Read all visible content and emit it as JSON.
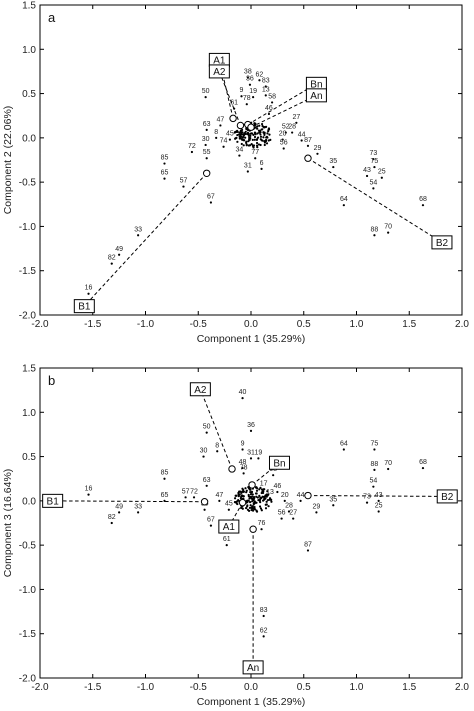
{
  "chart_data": [
    {
      "type": "scatter",
      "panel_label": "a",
      "xlabel": "Component 1 (35.29%)",
      "ylabel": "Component 2 (22.06%)",
      "xlim": [
        -2.0,
        2.0
      ],
      "ylim": [
        -2.0,
        1.5
      ],
      "x_ticks": [
        "-2.0",
        "-1.5",
        "-1.0",
        "-0.5",
        "0.0",
        "0.5",
        "1.0",
        "1.5",
        "2.0"
      ],
      "y_ticks": [
        "-2.0",
        "-1.5",
        "-1.0",
        "-0.5",
        "0.0",
        "0.5",
        "1.0",
        "1.5"
      ],
      "grid": false,
      "points": [
        {
          "label": "38",
          "x": -0.03,
          "y": 0.68
        },
        {
          "label": "62",
          "x": 0.08,
          "y": 0.65
        },
        {
          "label": "36",
          "x": -0.01,
          "y": 0.6
        },
        {
          "label": "83",
          "x": 0.14,
          "y": 0.58
        },
        {
          "label": "50",
          "x": -0.43,
          "y": 0.46
        },
        {
          "label": "13",
          "x": 0.14,
          "y": 0.48
        },
        {
          "label": "9",
          "x": -0.09,
          "y": 0.47
        },
        {
          "label": "19",
          "x": 0.02,
          "y": 0.46
        },
        {
          "label": "58",
          "x": 0.2,
          "y": 0.4
        },
        {
          "label": "78",
          "x": -0.04,
          "y": 0.38
        },
        {
          "label": "46",
          "x": 0.17,
          "y": 0.27
        },
        {
          "label": "61",
          "x": -0.16,
          "y": 0.33
        },
        {
          "label": "27",
          "x": 0.43,
          "y": 0.17
        },
        {
          "label": "47",
          "x": -0.29,
          "y": 0.14
        },
        {
          "label": "63",
          "x": -0.42,
          "y": 0.09
        },
        {
          "label": "52",
          "x": 0.33,
          "y": 0.06
        },
        {
          "label": "28",
          "x": 0.39,
          "y": 0.06
        },
        {
          "label": "8",
          "x": -0.33,
          "y": 0.0
        },
        {
          "label": "45",
          "x": -0.2,
          "y": -0.02
        },
        {
          "label": "20",
          "x": 0.3,
          "y": -0.02
        },
        {
          "label": "44",
          "x": 0.48,
          "y": -0.03
        },
        {
          "label": "30",
          "x": -0.43,
          "y": -0.08
        },
        {
          "label": "74",
          "x": -0.26,
          "y": -0.1
        },
        {
          "label": "56",
          "x": 0.31,
          "y": -0.12
        },
        {
          "label": "87",
          "x": 0.54,
          "y": -0.09
        },
        {
          "label": "72",
          "x": -0.56,
          "y": -0.16
        },
        {
          "label": "55",
          "x": -0.42,
          "y": -0.23
        },
        {
          "label": "34",
          "x": -0.11,
          "y": -0.2
        },
        {
          "label": "77",
          "x": 0.04,
          "y": -0.23
        },
        {
          "label": "29",
          "x": 0.63,
          "y": -0.18
        },
        {
          "label": "85",
          "x": -0.82,
          "y": -0.29
        },
        {
          "label": "6",
          "x": 0.1,
          "y": -0.35
        },
        {
          "label": "31",
          "x": -0.03,
          "y": -0.38
        },
        {
          "label": "35",
          "x": 0.78,
          "y": -0.33
        },
        {
          "label": "73",
          "x": 1.16,
          "y": -0.24
        },
        {
          "label": "75",
          "x": 1.17,
          "y": -0.33
        },
        {
          "label": "65",
          "x": -0.82,
          "y": -0.46
        },
        {
          "label": "43",
          "x": 1.1,
          "y": -0.43
        },
        {
          "label": "25",
          "x": 1.24,
          "y": -0.45
        },
        {
          "label": "57",
          "x": -0.64,
          "y": -0.55
        },
        {
          "label": "54",
          "x": 1.16,
          "y": -0.57
        },
        {
          "label": "67",
          "x": -0.38,
          "y": -0.73
        },
        {
          "label": "64",
          "x": 0.88,
          "y": -0.76
        },
        {
          "label": "68",
          "x": 1.63,
          "y": -0.76
        },
        {
          "label": "88",
          "x": 1.17,
          "y": -1.1
        },
        {
          "label": "70",
          "x": 1.3,
          "y": -1.07
        },
        {
          "label": "33",
          "x": -1.07,
          "y": -1.1
        },
        {
          "label": "49",
          "x": -1.25,
          "y": -1.32
        },
        {
          "label": "82",
          "x": -1.32,
          "y": -1.42
        },
        {
          "label": "16",
          "x": -1.54,
          "y": -1.76
        }
      ],
      "centroids": [
        {
          "name": "A1",
          "x": -0.17,
          "y": 0.22,
          "box": [
            -0.3,
            0.88
          ]
        },
        {
          "name": "A2",
          "x": -0.1,
          "y": 0.14,
          "box": [
            -0.3,
            0.75
          ]
        },
        {
          "name": "Bn",
          "x": -0.03,
          "y": 0.15,
          "box": [
            0.62,
            0.61
          ]
        },
        {
          "name": "An",
          "x": 0.0,
          "y": 0.12,
          "box": [
            0.62,
            0.48
          ]
        },
        {
          "name": "B1",
          "x": -0.42,
          "y": -0.4,
          "box": [
            -1.58,
            -1.9
          ]
        },
        {
          "name": "B2",
          "x": 0.54,
          "y": -0.23,
          "box": [
            1.81,
            -1.18
          ]
        }
      ]
    },
    {
      "type": "scatter",
      "panel_label": "b",
      "xlabel": "Component 1 (35.29%)",
      "ylabel": "Component 3 (16.64%)",
      "xlim": [
        -2.0,
        2.0
      ],
      "ylim": [
        -2.0,
        1.5
      ],
      "x_ticks": [
        "-2.0",
        "-1.5",
        "-1.0",
        "-0.5",
        "0.0",
        "0.5",
        "1.0",
        "1.5",
        "2.0"
      ],
      "y_ticks": [
        "-2.0",
        "-1.5",
        "-1.0",
        "-0.5",
        "0.0",
        "0.5",
        "1.0",
        "1.5"
      ],
      "grid": false,
      "points": [
        {
          "label": "40",
          "x": -0.08,
          "y": 1.16
        },
        {
          "label": "50",
          "x": -0.42,
          "y": 0.77
        },
        {
          "label": "36",
          "x": 0.0,
          "y": 0.79
        },
        {
          "label": "8",
          "x": -0.32,
          "y": 0.56
        },
        {
          "label": "9",
          "x": -0.08,
          "y": 0.58
        },
        {
          "label": "30",
          "x": -0.45,
          "y": 0.5
        },
        {
          "label": "31",
          "x": 0.0,
          "y": 0.48
        },
        {
          "label": "19",
          "x": 0.07,
          "y": 0.48
        },
        {
          "label": "64",
          "x": 0.88,
          "y": 0.58
        },
        {
          "label": "75",
          "x": 1.17,
          "y": 0.58
        },
        {
          "label": "88",
          "x": 1.17,
          "y": 0.35
        },
        {
          "label": "70",
          "x": 1.3,
          "y": 0.36
        },
        {
          "label": "68",
          "x": 1.63,
          "y": 0.37
        },
        {
          "label": "48",
          "x": -0.08,
          "y": 0.37
        },
        {
          "label": "78",
          "x": -0.07,
          "y": 0.31
        },
        {
          "label": "58",
          "x": 0.21,
          "y": 0.29
        },
        {
          "label": "85",
          "x": -0.82,
          "y": 0.25
        },
        {
          "label": "63",
          "x": -0.42,
          "y": 0.17
        },
        {
          "label": "54",
          "x": 1.16,
          "y": 0.16
        },
        {
          "label": "17",
          "x": 0.12,
          "y": 0.13
        },
        {
          "label": "46",
          "x": 0.25,
          "y": 0.1
        },
        {
          "label": "16",
          "x": -1.54,
          "y": 0.07
        },
        {
          "label": "65",
          "x": -0.82,
          "y": 0.0
        },
        {
          "label": "57",
          "x": -0.62,
          "y": 0.04
        },
        {
          "label": "72",
          "x": -0.54,
          "y": 0.04
        },
        {
          "label": "47",
          "x": -0.3,
          "y": 0.0
        },
        {
          "label": "13",
          "x": 0.18,
          "y": 0.03
        },
        {
          "label": "20",
          "x": 0.32,
          "y": 0.0
        },
        {
          "label": "44",
          "x": 0.47,
          "y": 0.0
        },
        {
          "label": "73",
          "x": 1.1,
          "y": -0.02
        },
        {
          "label": "43",
          "x": 1.21,
          "y": 0.0
        },
        {
          "label": "35",
          "x": 0.78,
          "y": -0.05
        },
        {
          "label": "55",
          "x": -0.44,
          "y": -0.1
        },
        {
          "label": "45",
          "x": -0.21,
          "y": -0.1
        },
        {
          "label": "28",
          "x": 0.36,
          "y": -0.12
        },
        {
          "label": "29",
          "x": 0.62,
          "y": -0.13
        },
        {
          "label": "25",
          "x": 1.21,
          "y": -0.12
        },
        {
          "label": "49",
          "x": -1.25,
          "y": -0.13
        },
        {
          "label": "33",
          "x": -1.07,
          "y": -0.13
        },
        {
          "label": "82",
          "x": -1.32,
          "y": -0.25
        },
        {
          "label": "56",
          "x": 0.29,
          "y": -0.2
        },
        {
          "label": "27",
          "x": 0.4,
          "y": -0.2
        },
        {
          "label": "67",
          "x": -0.38,
          "y": -0.28
        },
        {
          "label": "76",
          "x": 0.1,
          "y": -0.32
        },
        {
          "label": "61",
          "x": -0.23,
          "y": -0.5
        },
        {
          "label": "87",
          "x": 0.54,
          "y": -0.56
        },
        {
          "label": "83",
          "x": 0.12,
          "y": -1.3
        },
        {
          "label": "62",
          "x": 0.12,
          "y": -1.53
        }
      ],
      "centroids": [
        {
          "name": "A2",
          "x": -0.18,
          "y": 0.36,
          "box": [
            -0.48,
            1.26
          ]
        },
        {
          "name": "Bn",
          "x": 0.01,
          "y": 0.18,
          "box": [
            0.27,
            0.43
          ]
        },
        {
          "name": "A1",
          "x": -0.08,
          "y": -0.02,
          "box": [
            -0.21,
            -0.29
          ]
        },
        {
          "name": "B1",
          "x": -0.44,
          "y": -0.01,
          "box": [
            -1.88,
            0.0
          ]
        },
        {
          "name": "B2",
          "x": 0.54,
          "y": 0.06,
          "box": [
            1.86,
            0.05
          ]
        },
        {
          "name": "An",
          "x": 0.02,
          "y": -0.32,
          "box": [
            0.02,
            -1.88
          ]
        }
      ]
    }
  ]
}
